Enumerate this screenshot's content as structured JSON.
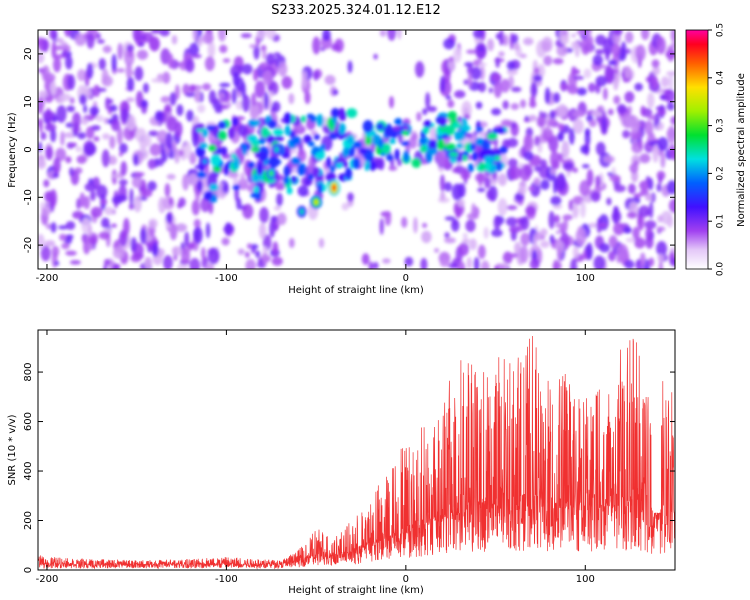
{
  "title": "S233.2025.324.01.12.E12",
  "colors": {
    "snr_line": "#f03030",
    "axis": "#000000",
    "background": "#ffffff"
  },
  "chart_data": [
    {
      "type": "heatmap",
      "xlabel": "Height of straight line (km)",
      "ylabel": "Frequency (Hz)",
      "xlim": [
        -205,
        150
      ],
      "ylim": [
        -25,
        25
      ],
      "x_ticks": [
        -200,
        -100,
        0,
        100
      ],
      "y_ticks": [
        -20,
        -10,
        0,
        10,
        20
      ],
      "colorbar": {
        "label": "Normalized spectral amplitude",
        "range": [
          0.0,
          0.5
        ],
        "ticks": [
          "0.0",
          "0.1",
          "0.2",
          "0.3",
          "0.4",
          "0.5"
        ]
      },
      "features": [
        {
          "description": "diffuse purple noise",
          "x_range": [
            -205,
            150
          ],
          "amplitude": 0.06
        },
        {
          "description": "ridge",
          "x_start": -115,
          "y_start": -3,
          "x_end": 15,
          "y_end": 4,
          "peak_amplitude": 0.25
        },
        {
          "description": "brightest spot",
          "x": -40,
          "y": -8,
          "amplitude": 0.45
        }
      ]
    },
    {
      "type": "line",
      "xlabel": "Height of straight line (km)",
      "ylabel": "SNR (10 * v/v)",
      "xlim": [
        -205,
        150
      ],
      "ylim": [
        0,
        970
      ],
      "x_ticks": [
        -200,
        -100,
        0,
        100
      ],
      "y_ticks": [
        0,
        200,
        400,
        600,
        800
      ],
      "series": [
        {
          "name": "SNR",
          "x": [
            -205,
            -180,
            -150,
            -120,
            -100,
            -80,
            -70,
            -60,
            -50,
            -40,
            -30,
            -20,
            -10,
            0,
            10,
            20,
            30,
            40,
            50,
            60,
            70,
            80,
            90,
            100,
            110,
            120,
            130,
            140,
            150
          ],
          "baseline": [
            25,
            22,
            22,
            22,
            24,
            22,
            24,
            35,
            60,
            55,
            70,
            100,
            130,
            150,
            180,
            210,
            230,
            240,
            250,
            260,
            255,
            250,
            245,
            240,
            250,
            260,
            250,
            200,
            230
          ],
          "peaks": [
            60,
            45,
            40,
            45,
            55,
            45,
            40,
            80,
            170,
            140,
            200,
            280,
            430,
            520,
            600,
            700,
            870,
            820,
            880,
            850,
            970,
            760,
            820,
            710,
            770,
            900,
            960,
            800,
            720
          ]
        }
      ]
    }
  ]
}
